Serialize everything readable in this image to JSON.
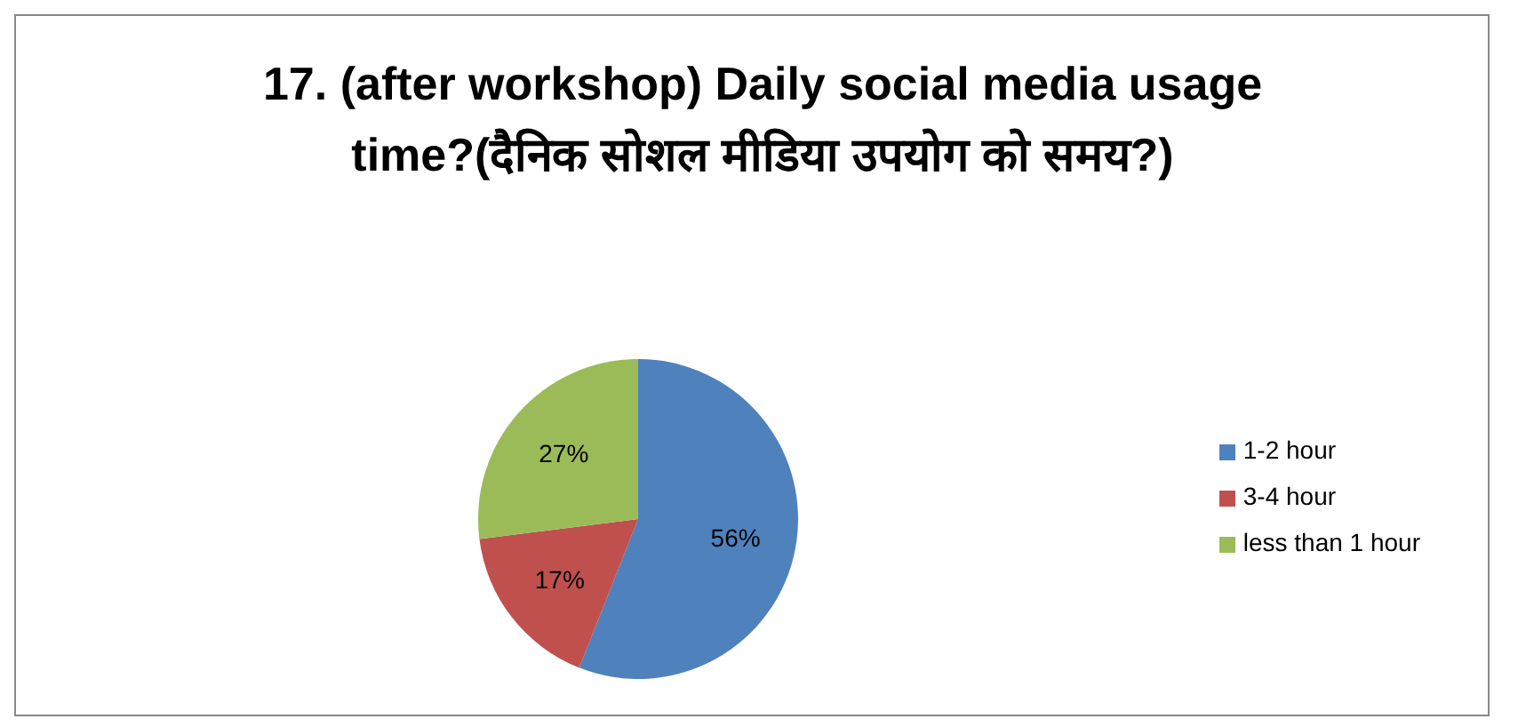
{
  "chart_data": {
    "type": "pie",
    "title": "17. (after workshop) Daily social media usage time?(दैनिक सोशल मीडिया उपयोग को समय?)",
    "categories": [
      "1-2 hour",
      "3-4 hour",
      "less than 1 hour"
    ],
    "values": [
      56,
      17,
      27
    ],
    "colors": [
      "#4f81bd",
      "#c0504d",
      "#9bbb59"
    ],
    "value_labels": [
      "56%",
      "17%",
      "27%"
    ],
    "legend": "right"
  }
}
